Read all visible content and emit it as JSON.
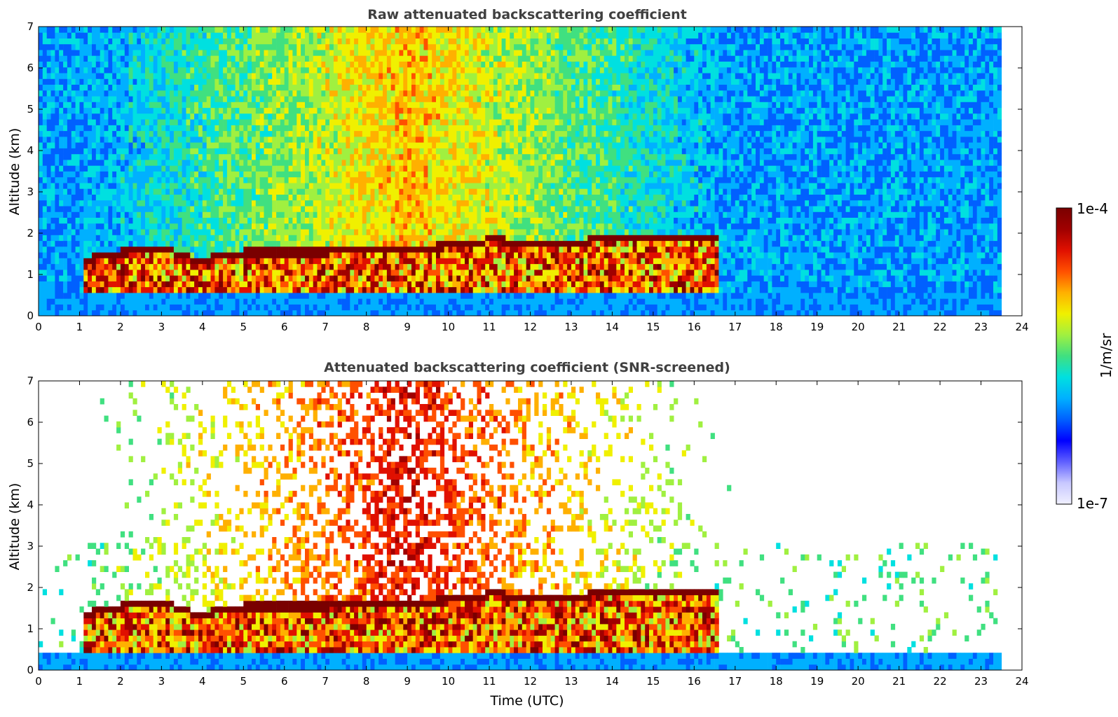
{
  "chart_data": [
    {
      "type": "heatmap",
      "title": "Raw attenuated backscattering coefficient",
      "xlabel": "",
      "ylabel": "Altitude (km)",
      "xlim": [
        0,
        24
      ],
      "ylim": [
        0,
        7
      ],
      "x_ticks": [
        "0",
        "1",
        "2",
        "3",
        "4",
        "5",
        "6",
        "7",
        "8",
        "9",
        "10",
        "11",
        "12",
        "13",
        "14",
        "15",
        "16",
        "17",
        "18",
        "19",
        "20",
        "21",
        "22",
        "23",
        "24"
      ],
      "y_ticks": [
        "0",
        "1",
        "2",
        "3",
        "4",
        "5",
        "6",
        "7"
      ],
      "data_extent_hours": [
        0,
        23.5
      ],
      "surface_layer_top_km": 0.55,
      "aerosol_layer_top_km": [
        [
          1.0,
          1.2
        ],
        [
          2.0,
          1.4
        ],
        [
          3.0,
          1.5
        ],
        [
          3.8,
          1.2
        ],
        [
          5.0,
          1.4
        ],
        [
          6.0,
          1.4
        ],
        [
          7.0,
          1.4
        ],
        [
          8.0,
          1.5
        ],
        [
          9.0,
          1.5
        ],
        [
          10.0,
          1.55
        ],
        [
          11.0,
          1.7
        ],
        [
          12.0,
          1.6
        ],
        [
          13.0,
          1.6
        ],
        [
          14.0,
          1.8
        ],
        [
          15.0,
          1.8
        ],
        [
          16.5,
          1.8
        ]
      ],
      "screened": false
    },
    {
      "type": "heatmap",
      "title": "Attenuated backscattering coefficient (SNR-screened)",
      "xlabel": "Time (UTC)",
      "ylabel": "Altitude (km)",
      "xlim": [
        0,
        24
      ],
      "ylim": [
        0,
        7
      ],
      "x_ticks": [
        "0",
        "1",
        "2",
        "3",
        "4",
        "5",
        "6",
        "7",
        "8",
        "9",
        "10",
        "11",
        "12",
        "13",
        "14",
        "15",
        "16",
        "17",
        "18",
        "19",
        "20",
        "21",
        "22",
        "23",
        "24"
      ],
      "y_ticks": [
        "0",
        "1",
        "2",
        "3",
        "4",
        "5",
        "6",
        "7"
      ],
      "data_extent_hours": [
        0,
        23.5
      ],
      "surface_layer_top_km": 0.3,
      "aerosol_layer_top_km": [
        [
          1.0,
          1.2
        ],
        [
          2.0,
          1.4
        ],
        [
          3.0,
          1.5
        ],
        [
          3.8,
          1.2
        ],
        [
          5.0,
          1.4
        ],
        [
          6.0,
          1.4
        ],
        [
          7.0,
          1.4
        ],
        [
          8.0,
          1.5
        ],
        [
          9.0,
          1.5
        ],
        [
          10.0,
          1.55
        ],
        [
          11.0,
          1.7
        ],
        [
          12.0,
          1.6
        ],
        [
          13.0,
          1.6
        ],
        [
          14.0,
          1.8
        ],
        [
          15.0,
          1.8
        ],
        [
          16.5,
          1.8
        ]
      ],
      "screened": true
    }
  ],
  "colorbar": {
    "label": "1/m/sr",
    "max_label": "1e-4",
    "min_label": "1e-7",
    "scale": "log",
    "colormap": [
      "#f0f0ff",
      "#c8c8ff",
      "#6060ff",
      "#0000ff",
      "#0060ff",
      "#00b0ff",
      "#00e0e0",
      "#40e080",
      "#a0f040",
      "#f0f000",
      "#ffb000",
      "#ff5000",
      "#e01000",
      "#a00000",
      "#7a0000"
    ]
  }
}
